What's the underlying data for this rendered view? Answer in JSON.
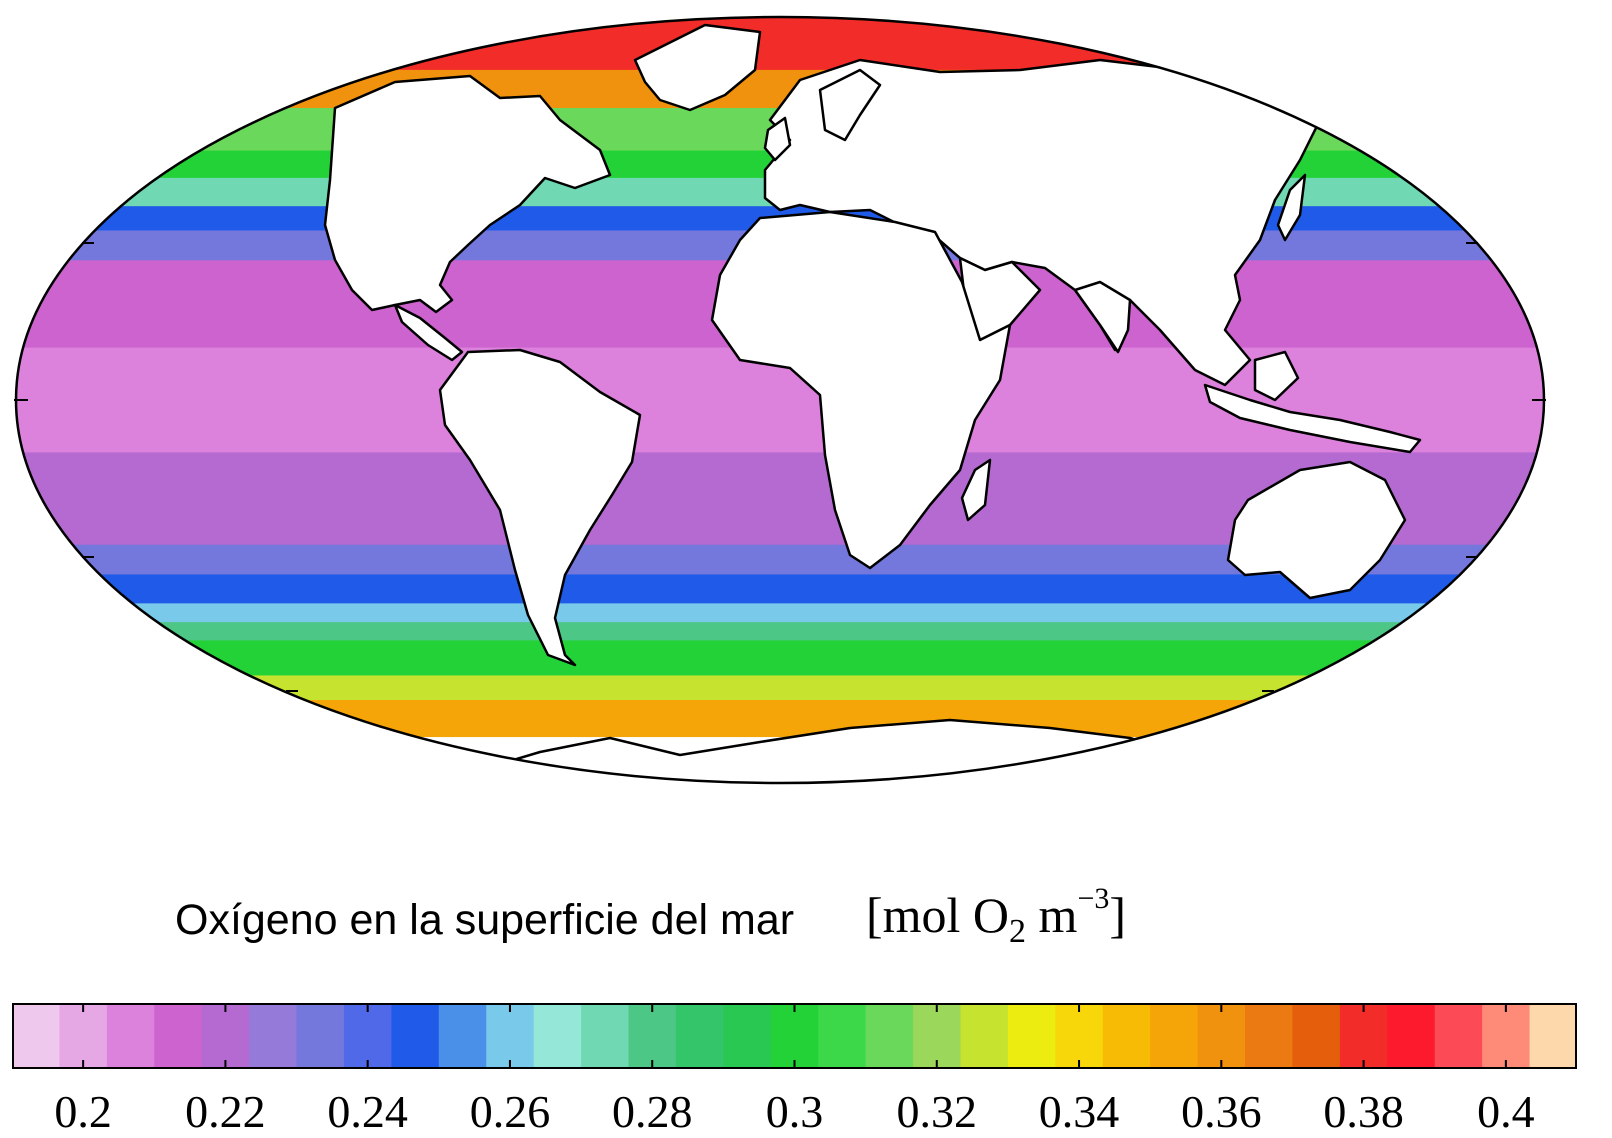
{
  "title": "Oxígeno en la superficie del mar",
  "unit": {
    "open": "[mol O",
    "sub": "2",
    "mid": " m",
    "sup": "−3",
    "close": "]"
  },
  "colorbar": {
    "min": 0.19,
    "max": 0.41,
    "colors": [
      "#efc9ed",
      "#e6a7e5",
      "#dc82dc",
      "#cd63cf",
      "#b56ad2",
      "#957ad9",
      "#7478dd",
      "#4f69e8",
      "#1f5be8",
      "#4a8fe8",
      "#78c9ea",
      "#95e8d8",
      "#70d8b3",
      "#4cc785",
      "#34c56a",
      "#28c852",
      "#22d236",
      "#3dd84a",
      "#6ad85b",
      "#9ad75a",
      "#c6e330",
      "#ecec10",
      "#f7d60a",
      "#f7bb05",
      "#f5a507",
      "#f0920d",
      "#eb7a12",
      "#e45e0c",
      "#f22c28",
      "#fd1a2d",
      "#fc4a56",
      "#fd8b78",
      "#fdd8aa"
    ],
    "ticks": [
      "0.2",
      "0.22",
      "0.24",
      "0.26",
      "0.28",
      "0.3",
      "0.32",
      "0.34",
      "0.36",
      "0.38",
      "0.4"
    ],
    "tick_values": [
      0.2,
      0.22,
      0.24,
      0.26,
      0.28,
      0.3,
      0.32,
      0.34,
      0.36,
      0.38,
      0.4
    ]
  },
  "map_bands": [
    {
      "lat_from": 90,
      "lat_to": 70,
      "color": "#f22c28"
    },
    {
      "lat_from": 70,
      "lat_to": 60,
      "color": "#f0920d"
    },
    {
      "lat_from": 60,
      "lat_to": 50,
      "color": "#6ad85b"
    },
    {
      "lat_from": 50,
      "lat_to": 44,
      "color": "#22d236"
    },
    {
      "lat_from": 44,
      "lat_to": 38,
      "color": "#70d8b3"
    },
    {
      "lat_from": 38,
      "lat_to": 33,
      "color": "#1f5be8"
    },
    {
      "lat_from": 33,
      "lat_to": 27,
      "color": "#7478dd"
    },
    {
      "lat_from": 27,
      "lat_to": 10,
      "color": "#cd63cf"
    },
    {
      "lat_from": 10,
      "lat_to": -10,
      "color": "#dc82dc"
    },
    {
      "lat_from": -10,
      "lat_to": -28,
      "color": "#b56ad2"
    },
    {
      "lat_from": -28,
      "lat_to": -34,
      "color": "#7478dd"
    },
    {
      "lat_from": -34,
      "lat_to": -40,
      "color": "#1f5be8"
    },
    {
      "lat_from": -40,
      "lat_to": -44,
      "color": "#78c9ea"
    },
    {
      "lat_from": -44,
      "lat_to": -48,
      "color": "#4cc785"
    },
    {
      "lat_from": -48,
      "lat_to": -56,
      "color": "#22d236"
    },
    {
      "lat_from": -56,
      "lat_to": -62,
      "color": "#c6e330"
    },
    {
      "lat_from": -62,
      "lat_to": -72,
      "color": "#f5a507"
    },
    {
      "lat_from": -72,
      "lat_to": -90,
      "color": "#ffffff"
    }
  ]
}
